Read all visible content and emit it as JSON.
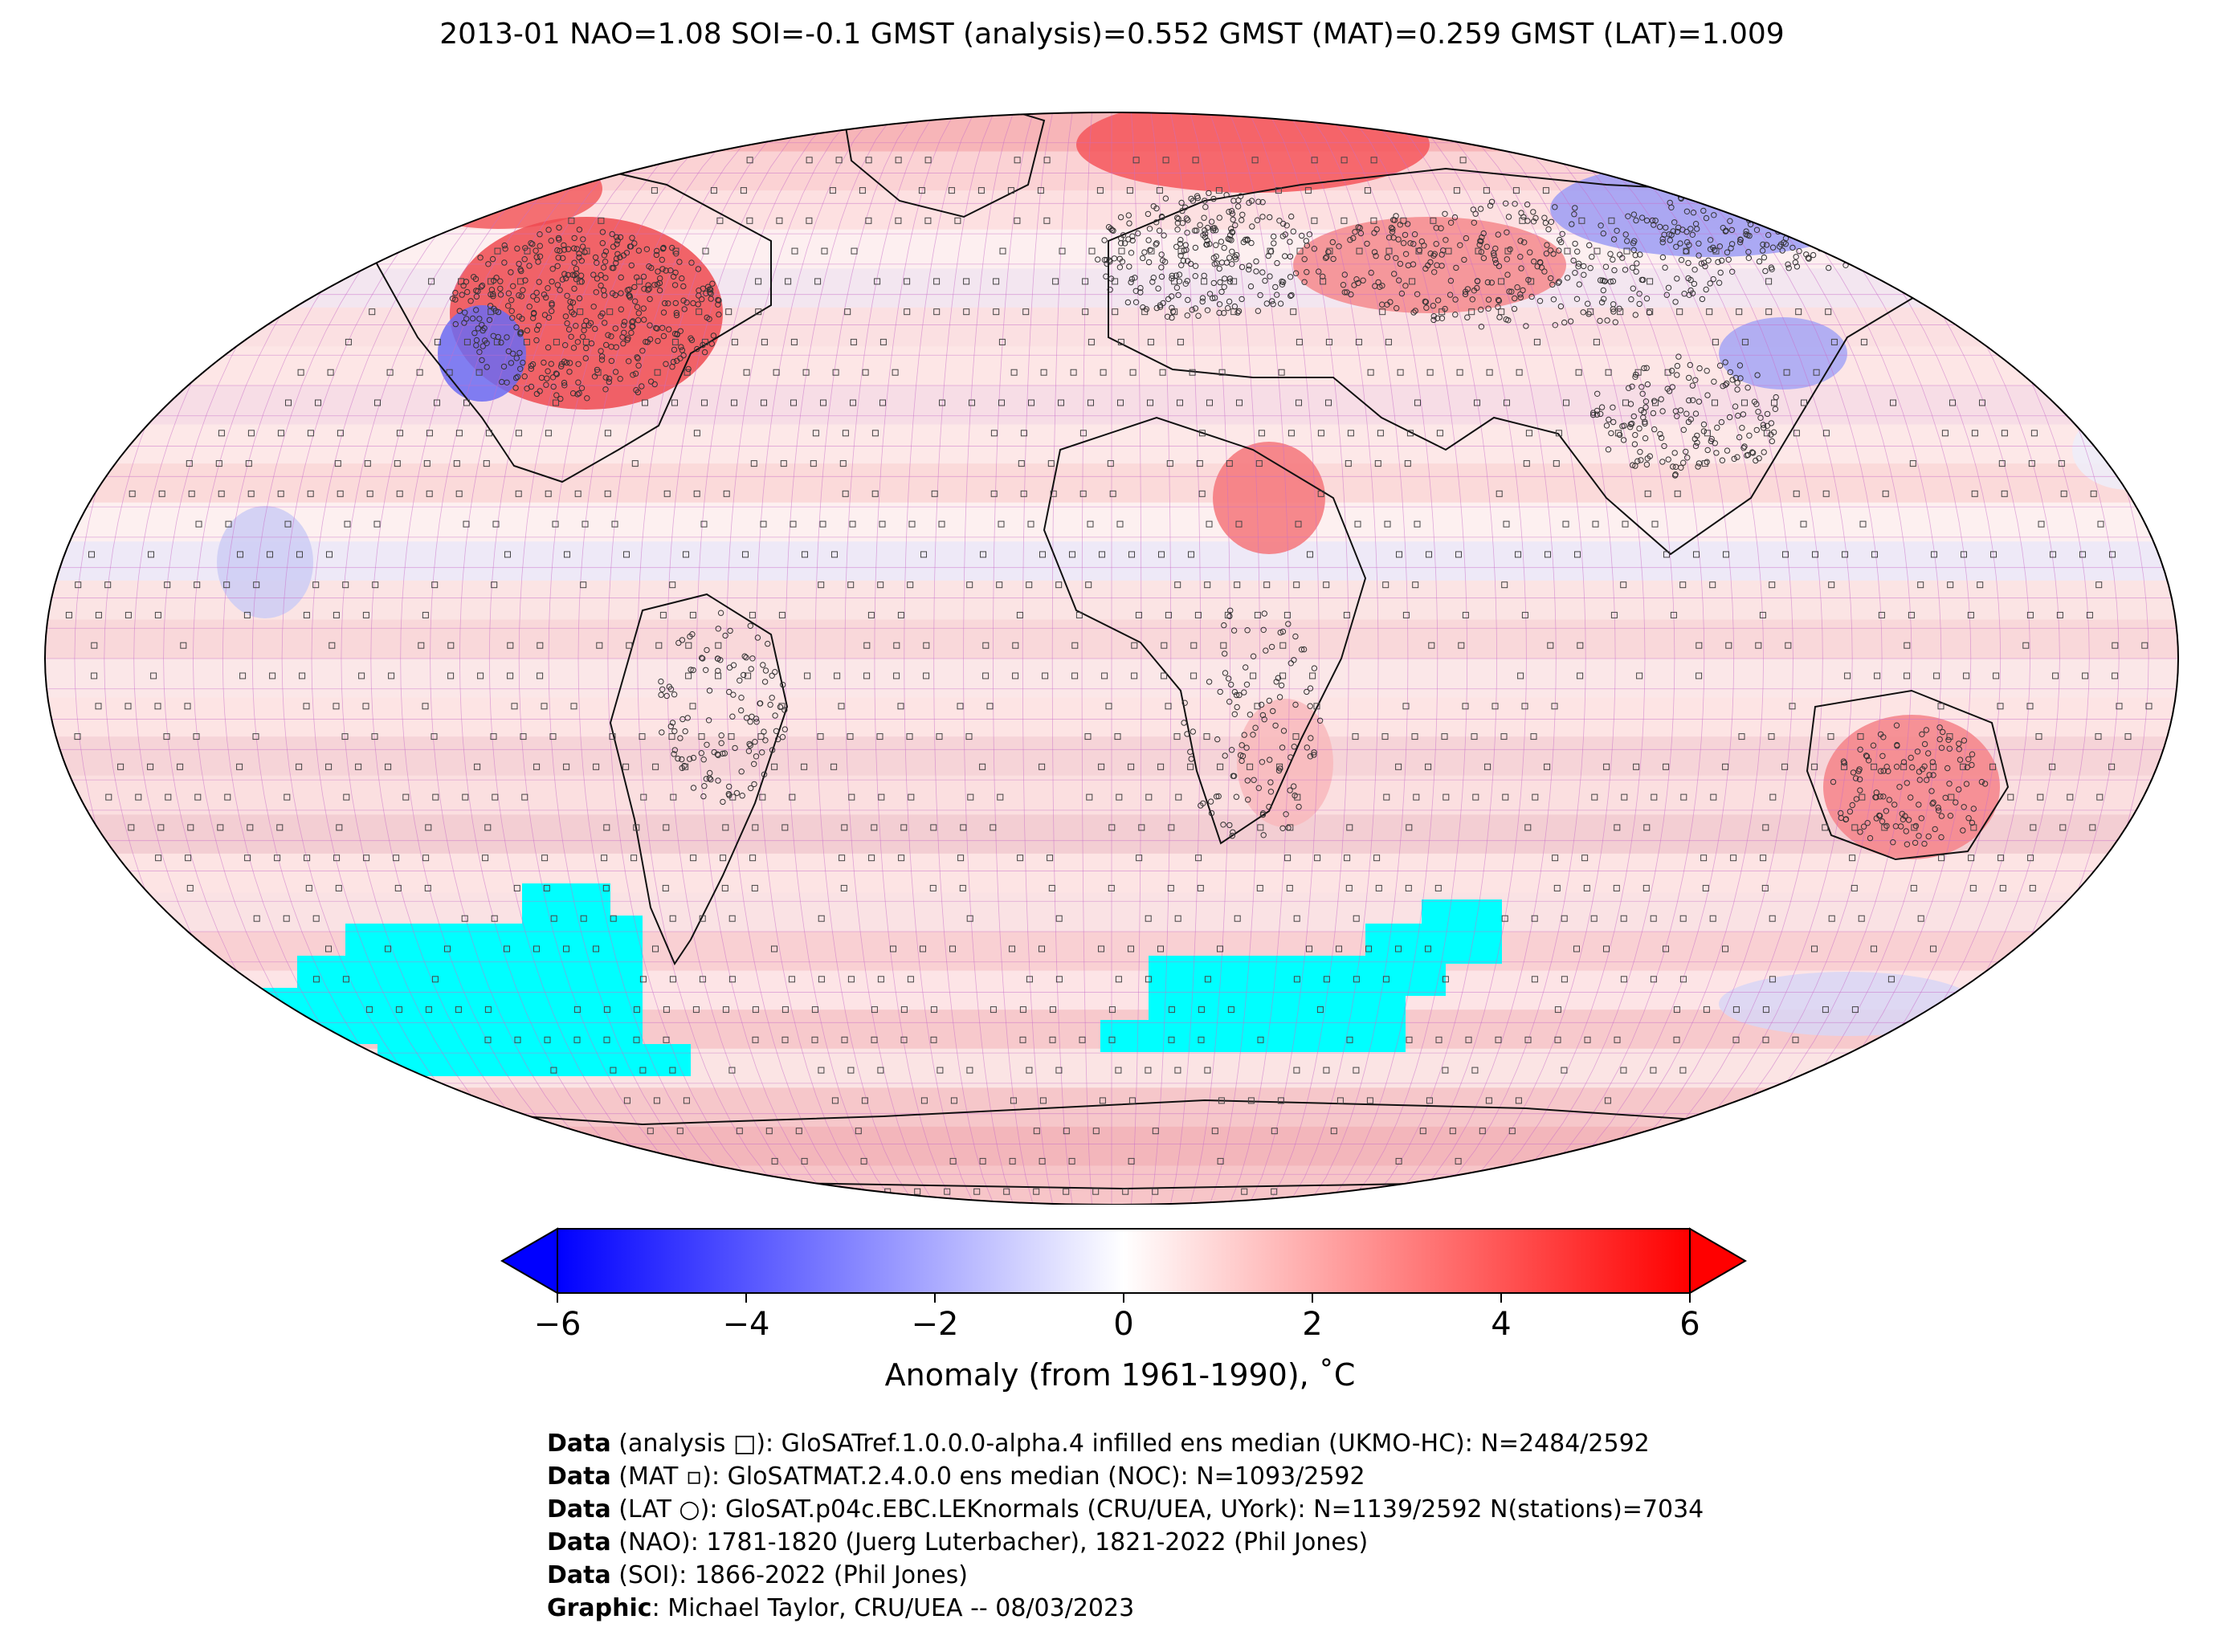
{
  "title": "2013-01 NAO=1.08 SOI=-0.1 GMST (analysis)=0.552 GMST (MAT)=0.259 GMST (LAT)=1.009",
  "map": {
    "projection": "robinson",
    "land_outline_color": "#000000",
    "gridline_color": "#c86ec8",
    "missing_color": "#00ffff",
    "markers": [
      "analysis-square",
      "mat-square",
      "lat-circle"
    ]
  },
  "colorbar": {
    "cmap": [
      "#0000ff",
      "#ffffff",
      "#ff0000"
    ],
    "range": [
      -6,
      6
    ],
    "extend": "both",
    "ticks": [
      "−6",
      "−4",
      "−2",
      "0",
      "2",
      "4",
      "6"
    ],
    "label": "Anomaly (from 1961-1990), ˚C"
  },
  "credits": [
    {
      "key": "Data",
      "text": " (analysis □): GloSATref.1.0.0.0-alpha.4 infilled ens median (UKMO-HC): N=2484/2592"
    },
    {
      "key": "Data",
      "text": " (MAT ▫): GloSATMAT.2.4.0.0 ens median (NOC): N=1093/2592"
    },
    {
      "key": "Data",
      "text": " (LAT ○): GloSAT.p04c.EBC.LEKnormals (CRU/UEA, UYork): N=1139/2592 N(stations)=7034"
    },
    {
      "key": "Data",
      "text": " (NAO): 1781-1820 (Juerg Luterbacher), 1821-2022 (Phil Jones)"
    },
    {
      "key": "Data",
      "text": " (SOI): 1866-2022 (Phil Jones)"
    },
    {
      "key": "Graphic",
      "text": ": Michael Taylor, CRU/UEA -- 08/03/2023"
    }
  ]
}
